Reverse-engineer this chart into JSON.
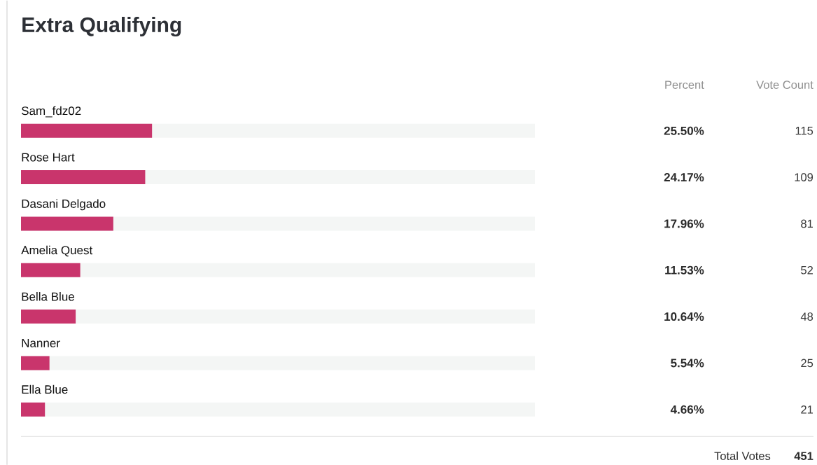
{
  "chart_data": {
    "type": "bar",
    "orientation": "horizontal",
    "title": "Extra Qualifying",
    "categories": [
      "Sam_fdz02",
      "Rose Hart",
      "Dasani Delgado",
      "Amelia Quest",
      "Bella Blue",
      "Nanner",
      "Ella Blue"
    ],
    "values": [
      25.5,
      24.17,
      17.96,
      11.53,
      10.64,
      5.54,
      4.66
    ],
    "value_labels": [
      "25.50%",
      "24.17%",
      "17.96%",
      "11.53%",
      "10.64%",
      "5.54%",
      "4.66%"
    ],
    "color": "#c9356c",
    "xlim": [
      0,
      100
    ],
    "tick_labels": "y",
    "annotations": [
      "Percent",
      "Vote Count",
      "115",
      "109",
      "81",
      "52",
      "48",
      "25",
      "21",
      "Total Votes",
      "451"
    ]
  }
}
